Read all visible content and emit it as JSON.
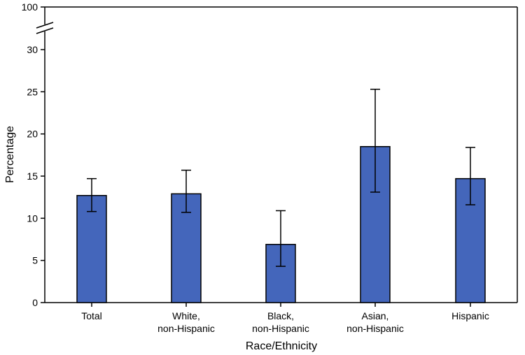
{
  "chart_data": {
    "type": "bar",
    "xlabel": "Race/Ethnicity",
    "ylabel": "Percentage",
    "categories": [
      [
        "Total"
      ],
      [
        "White,",
        "non-Hispanic"
      ],
      [
        "Black,",
        "non-Hispanic"
      ],
      [
        "Asian,",
        "non-Hispanic"
      ],
      [
        "Hispanic"
      ]
    ],
    "values": [
      12.7,
      12.9,
      6.9,
      18.5,
      14.7
    ],
    "error_low": [
      10.8,
      10.7,
      4.3,
      13.1,
      11.6
    ],
    "error_high": [
      14.7,
      15.7,
      10.9,
      25.3,
      18.4
    ],
    "ylim": [
      0,
      30
    ],
    "yticks": [
      0,
      5,
      10,
      15,
      20,
      25,
      30
    ],
    "axis_break_top_label": "100",
    "bar_color": "#4466bb",
    "grid": false
  }
}
